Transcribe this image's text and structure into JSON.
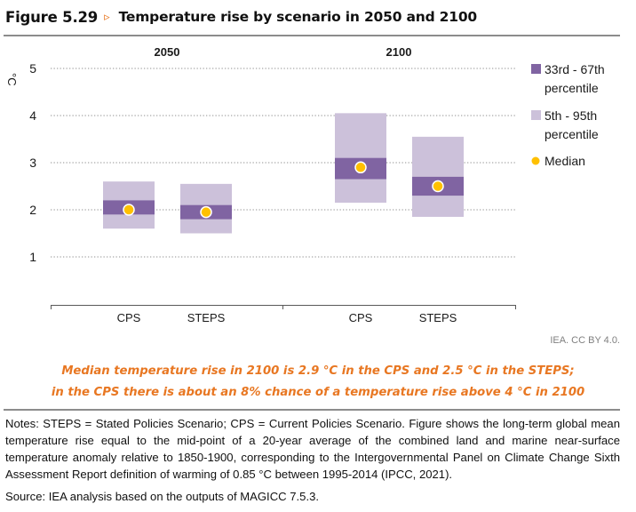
{
  "figure": {
    "number": "Figure 5.29",
    "arrow_glyph": "▹",
    "title": "Temperature rise by scenario in 2050 and 2100"
  },
  "credit": "IEA. CC BY 4.0.",
  "caption": {
    "line1": "Median temperature rise in 2100 is 2.9 °C in the CPS and 2.5 °C in the STEPS;",
    "line2": "in the CPS there is about an 8% chance of a temperature rise above 4 °C in 2100"
  },
  "notes": {
    "text": "Notes: STEPS = Stated Policies Scenario; CPS = Current Policies Scenario. Figure shows the long-term global mean temperature rise equal to the mid-point of a 20-year average of the combined land and marine near-surface temperature anomaly relative to 1850-1900, corresponding to the Intergovernmental Panel on Climate Change Sixth Assessment Report definition of warming of 0.85 °C between 1995-2014 (IPCC, 2021).",
    "source": "Source: IEA analysis based on the outputs of MAGICC 7.5.3."
  },
  "colors": {
    "accent_orange": "#e87722",
    "inner_band": "#8064a2",
    "outer_band": "#ccc1da",
    "median": "#ffc000",
    "grid": "#a6a6a6"
  },
  "chart_data": {
    "type": "box-range",
    "title": "Temperature rise by scenario in 2050 and 2100",
    "ylabel": "°C",
    "xlabel": "",
    "ylim": [
      1,
      5
    ],
    "yticks": [
      1,
      2,
      3,
      4,
      5
    ],
    "grid": true,
    "legend_position": "right",
    "groups": [
      {
        "label": "2050",
        "categories": [
          {
            "label": "CPS",
            "p5": 1.6,
            "p33": 1.9,
            "median": 2.0,
            "p67": 2.2,
            "p95": 2.6
          },
          {
            "label": "STEPS",
            "p5": 1.5,
            "p33": 1.8,
            "median": 1.95,
            "p67": 2.1,
            "p95": 2.55
          }
        ]
      },
      {
        "label": "2100",
        "categories": [
          {
            "label": "CPS",
            "p5": 2.15,
            "p33": 2.65,
            "median": 2.9,
            "p67": 3.1,
            "p95": 4.05
          },
          {
            "label": "STEPS",
            "p5": 1.85,
            "p33": 2.3,
            "median": 2.5,
            "p67": 2.7,
            "p95": 3.55
          }
        ]
      }
    ],
    "legend": [
      {
        "key": "inner",
        "label_line1": "33rd - 67th",
        "label_line2": "percentile"
      },
      {
        "key": "outer",
        "label_line1": "5th - 95th",
        "label_line2": "percentile"
      },
      {
        "key": "median",
        "label_line1": "Median",
        "label_line2": ""
      }
    ]
  }
}
